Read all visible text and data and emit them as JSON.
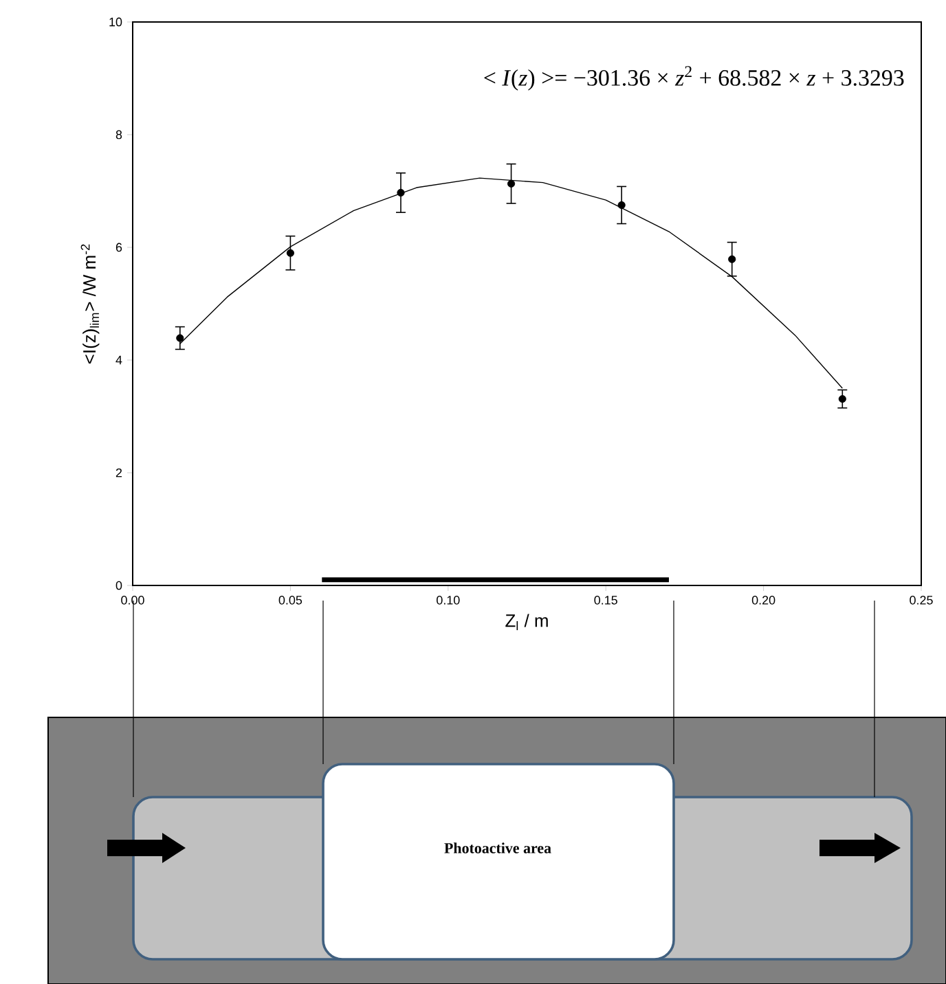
{
  "chart_data": {
    "type": "scatter",
    "xlabel": "Z$_{l}$ / m",
    "ylabel": "<I(z)$_{lim}$> /W m$^{-2}$",
    "xlim": [
      0,
      0.25
    ],
    "ylim": [
      0,
      10
    ],
    "xticks": [
      {
        "value": 0,
        "label": "0.00"
      },
      {
        "value": 0.05,
        "label": "0.05"
      },
      {
        "value": 0.1,
        "label": "0.10"
      },
      {
        "value": 0.15,
        "label": "0.15"
      },
      {
        "value": 0.2,
        "label": "0.20"
      },
      {
        "value": 0.25,
        "label": "0.25"
      }
    ],
    "yticks": [
      0,
      2,
      4,
      6,
      8,
      10
    ],
    "marker": "circle",
    "series": [
      {
        "color": "#000000",
        "x": [
          0.015,
          0.05,
          0.085,
          0.12,
          0.155,
          0.19,
          0.225
        ],
        "values": [
          4.39,
          5.9,
          6.97,
          7.13,
          6.75,
          5.79,
          3.31
        ],
        "errors": [
          0.2,
          0.3,
          0.35,
          0.35,
          0.33,
          0.3,
          0.16
        ]
      },
      {
        "type": "line",
        "color": "#000000",
        "marker": "none",
        "x": [
          0.015,
          0.03,
          0.05,
          0.07,
          0.09,
          0.11,
          0.13,
          0.15,
          0.17,
          0.19,
          0.21,
          0.225
        ],
        "values": [
          4.29,
          5.12,
          6.01,
          6.65,
          7.06,
          7.23,
          7.15,
          6.84,
          6.28,
          5.48,
          4.44,
          3.5
        ]
      },
      {
        "type": "line",
        "color": "#000000",
        "marker": "none",
        "x": [
          0.06,
          0.17
        ],
        "values": [
          0.1,
          0.1
        ]
      }
    ],
    "annotations": [
      "< *I*(*z*) >= −301.36 × *z*$^{2}$ + 68.582 × *z* + 3.3293",
      "Photoactive area"
    ]
  }
}
